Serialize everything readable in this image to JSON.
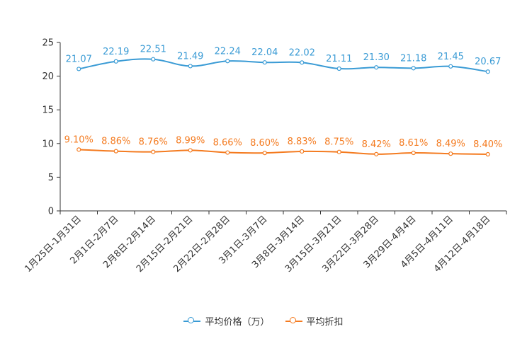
{
  "chart_data": {
    "type": "line",
    "title": "",
    "xlabel": "",
    "ylabel": "",
    "ylim": [
      0,
      25
    ],
    "yticks": [
      0,
      5,
      10,
      15,
      20,
      25
    ],
    "categories": [
      "1月25日-1月31日",
      "2月1日-2月7日",
      "2月8日-2月14日",
      "2月15日-2月21日",
      "2月22日-2月28日",
      "3月1日-3月7日",
      "3月8日-3月14日",
      "3月15日-3月21日",
      "3月22日-3月28日",
      "3月29日-4月4日",
      "4月5日-4月11日",
      "4月12日-4月18日"
    ],
    "series": [
      {
        "name": "平均价格（万）",
        "color": "#3a9bd5",
        "values": [
          21.07,
          22.19,
          22.51,
          21.49,
          22.24,
          22.04,
          22.02,
          21.11,
          21.3,
          21.18,
          21.45,
          20.67
        ],
        "labels": [
          "21.07",
          "22.19",
          "22.51",
          "21.49",
          "22.24",
          "22.04",
          "22.02",
          "21.11",
          "21.30",
          "21.18",
          "21.45",
          "20.67"
        ]
      },
      {
        "name": "平均折扣",
        "color": "#f47b20",
        "values": [
          9.1,
          8.86,
          8.76,
          8.99,
          8.66,
          8.6,
          8.83,
          8.75,
          8.42,
          8.61,
          8.49,
          8.4
        ],
        "labels": [
          "9.10%",
          "8.86%",
          "8.76%",
          "8.99%",
          "8.66%",
          "8.60%",
          "8.83%",
          "8.75%",
          "8.42%",
          "8.61%",
          "8.49%",
          "8.40%"
        ]
      }
    ],
    "legend_position": "bottom-center",
    "grid": false
  }
}
